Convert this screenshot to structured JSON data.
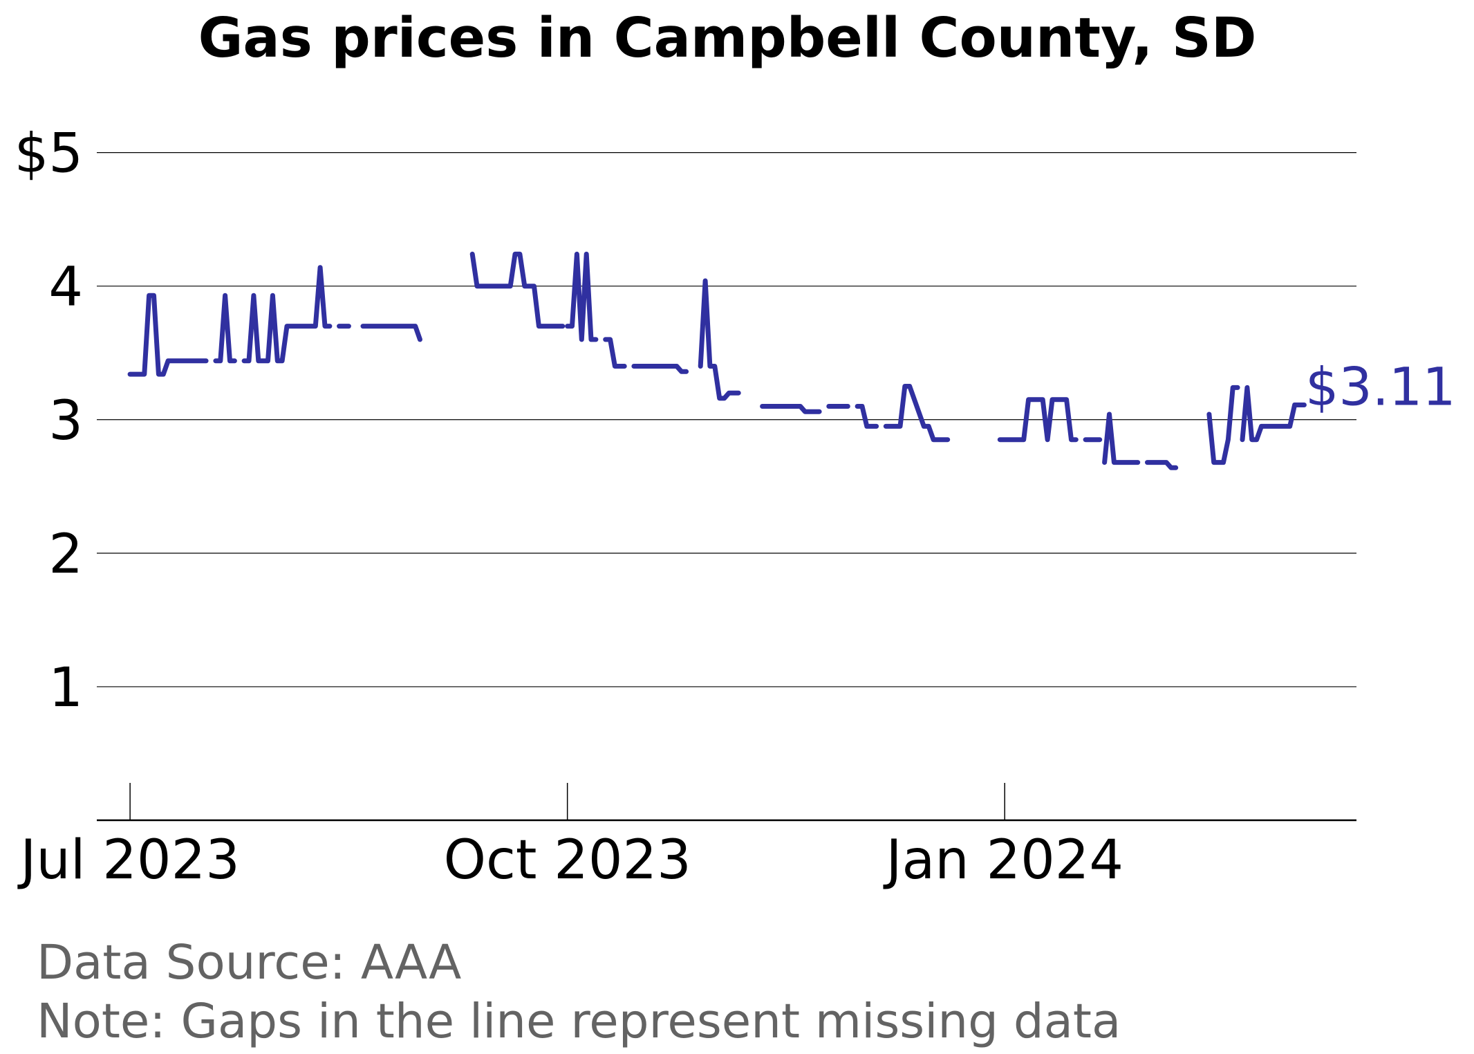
{
  "chart_data": {
    "type": "line",
    "title": "Gas prices in Campbell County, SD",
    "xlabel": "",
    "ylabel": "",
    "ylim": [
      0,
      5.2
    ],
    "x_range": [
      "2023-06-24",
      "2024-03-15"
    ],
    "y_ticks": [
      1,
      2,
      3,
      4,
      5
    ],
    "y_tick_labels": [
      "1",
      "2",
      "3",
      "4",
      "$5"
    ],
    "x_ticks": [
      "2023-07-01",
      "2023-10-01",
      "2024-01-01"
    ],
    "x_tick_labels": [
      "Jul 2023",
      "Oct 2023",
      "Jan 2024"
    ],
    "grid": "horizontal",
    "line_color": "#3030a0",
    "end_label": "$3.11",
    "series": [
      {
        "segments": [
          [
            [
              "2023-07-01",
              3.34
            ],
            [
              "2023-07-04",
              3.34
            ],
            [
              "2023-07-05",
              3.93
            ],
            [
              "2023-07-06",
              3.93
            ],
            [
              "2023-07-07",
              3.34
            ],
            [
              "2023-07-08",
              3.34
            ],
            [
              "2023-07-09",
              3.44
            ],
            [
              "2023-07-17",
              3.44
            ]
          ],
          [
            [
              "2023-07-19",
              3.44
            ],
            [
              "2023-07-20",
              3.44
            ],
            [
              "2023-07-21",
              3.93
            ],
            [
              "2023-07-22",
              3.44
            ],
            [
              "2023-07-23",
              3.44
            ]
          ],
          [
            [
              "2023-07-25",
              3.44
            ],
            [
              "2023-07-26",
              3.44
            ],
            [
              "2023-07-27",
              3.93
            ],
            [
              "2023-07-28",
              3.44
            ],
            [
              "2023-07-30",
              3.44
            ],
            [
              "2023-07-31",
              3.93
            ],
            [
              "2023-08-01",
              3.44
            ],
            [
              "2023-08-02",
              3.44
            ],
            [
              "2023-08-03",
              3.7
            ],
            [
              "2023-08-09",
              3.7
            ],
            [
              "2023-08-10",
              4.14
            ],
            [
              "2023-08-11",
              3.7
            ],
            [
              "2023-08-12",
              3.7
            ]
          ],
          [
            [
              "2023-08-14",
              3.7
            ],
            [
              "2023-08-16",
              3.7
            ]
          ],
          [
            [
              "2023-08-19",
              3.7
            ],
            [
              "2023-08-30",
              3.7
            ],
            [
              "2023-08-31",
              3.6
            ]
          ],
          [
            [
              "2023-09-11",
              4.24
            ],
            [
              "2023-09-12",
              4.0
            ],
            [
              "2023-09-19",
              4.0
            ],
            [
              "2023-09-20",
              4.24
            ],
            [
              "2023-09-21",
              4.24
            ],
            [
              "2023-09-22",
              4.0
            ],
            [
              "2023-09-24",
              4.0
            ],
            [
              "2023-09-25",
              3.7
            ],
            [
              "2023-09-30",
              3.7
            ]
          ],
          [
            [
              "2023-10-01",
              3.7
            ],
            [
              "2023-10-02",
              3.7
            ],
            [
              "2023-10-03",
              4.24
            ],
            [
              "2023-10-04",
              3.6
            ],
            [
              "2023-10-05",
              4.24
            ],
            [
              "2023-10-06",
              3.6
            ],
            [
              "2023-10-07",
              3.6
            ]
          ],
          [
            [
              "2023-10-09",
              3.6
            ],
            [
              "2023-10-10",
              3.6
            ],
            [
              "2023-10-11",
              3.4
            ],
            [
              "2023-10-13",
              3.4
            ]
          ],
          [
            [
              "2023-10-15",
              3.4
            ],
            [
              "2023-10-24",
              3.4
            ],
            [
              "2023-10-25",
              3.36
            ],
            [
              "2023-10-26",
              3.36
            ]
          ],
          [
            [
              "2023-10-29",
              3.4
            ],
            [
              "2023-10-30",
              4.04
            ],
            [
              "2023-10-31",
              3.4
            ],
            [
              "2023-11-01",
              3.4
            ],
            [
              "2023-11-02",
              3.16
            ],
            [
              "2023-11-03",
              3.16
            ],
            [
              "2023-11-04",
              3.2
            ],
            [
              "2023-11-06",
              3.2
            ]
          ],
          [
            [
              "2023-11-11",
              3.1
            ],
            [
              "2023-11-19",
              3.1
            ],
            [
              "2023-11-20",
              3.06
            ],
            [
              "2023-11-23",
              3.06
            ]
          ],
          [
            [
              "2023-11-25",
              3.1
            ],
            [
              "2023-11-29",
              3.1
            ]
          ],
          [
            [
              "2023-12-01",
              3.1
            ],
            [
              "2023-12-02",
              3.1
            ],
            [
              "2023-12-03",
              2.95
            ],
            [
              "2023-12-05",
              2.95
            ]
          ],
          [
            [
              "2023-12-07",
              2.95
            ],
            [
              "2023-12-10",
              2.95
            ],
            [
              "2023-12-11",
              3.25
            ],
            [
              "2023-12-12",
              3.25
            ],
            [
              "2023-12-15",
              2.95
            ],
            [
              "2023-12-16",
              2.95
            ],
            [
              "2023-12-17",
              2.85
            ],
            [
              "2023-12-20",
              2.85
            ]
          ],
          [
            [
              "2024-01-00",
              2.85
            ],
            [
              "2023-12-31",
              2.85
            ],
            [
              "2024-01-05",
              2.85
            ],
            [
              "2024-01-06",
              3.15
            ],
            [
              "2024-01-09",
              3.15
            ],
            [
              "2024-01-10",
              2.85
            ],
            [
              "2024-01-11",
              3.15
            ],
            [
              "2024-01-14",
              3.15
            ],
            [
              "2024-01-15",
              2.85
            ],
            [
              "2024-01-16",
              2.85
            ]
          ],
          [
            [
              "2024-01-18",
              2.85
            ],
            [
              "2024-01-21",
              2.85
            ]
          ],
          [
            [
              "2024-01-22",
              2.68
            ],
            [
              "2024-01-23",
              3.04
            ],
            [
              "2024-01-24",
              2.68
            ],
            [
              "2024-01-29",
              2.68
            ]
          ],
          [
            [
              "2024-01-31",
              2.68
            ],
            [
              "2024-02-04",
              2.68
            ],
            [
              "2024-02-05",
              2.64
            ],
            [
              "2024-02-06",
              2.64
            ]
          ],
          [
            [
              "2024-02-13",
              3.04
            ],
            [
              "2024-02-14",
              2.68
            ],
            [
              "2024-02-16",
              2.68
            ],
            [
              "2024-02-17",
              2.85
            ],
            [
              "2024-02-18",
              3.24
            ],
            [
              "2024-02-19",
              3.24
            ]
          ],
          [
            [
              "2024-02-20",
              2.85
            ],
            [
              "2024-02-21",
              3.24
            ],
            [
              "2024-02-22",
              2.85
            ],
            [
              "2024-02-23",
              2.85
            ],
            [
              "2024-02-24",
              2.95
            ],
            [
              "2024-03-01",
              2.95
            ],
            [
              "2024-03-02",
              3.11
            ],
            [
              "2024-03-04",
              3.11
            ]
          ]
        ]
      }
    ]
  },
  "footer": {
    "source": "Data Source: AAA",
    "note": "Note: Gaps in the line represent missing data"
  }
}
